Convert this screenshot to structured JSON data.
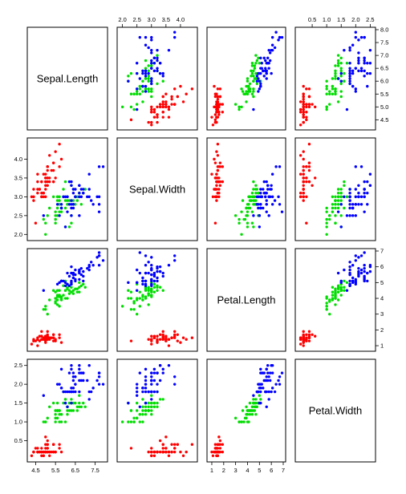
{
  "chart_data": {
    "type": "scatter",
    "variables": [
      {
        "name": "Sepal.Length",
        "range": [
          4.2,
          8.0
        ],
        "ticks": [
          "4.5",
          "5.5",
          "6.5",
          "7.5"
        ],
        "tick_values": [
          4.5,
          5.5,
          6.5,
          7.5
        ],
        "right_ticks": [
          "4.5",
          "5.0",
          "5.5",
          "6.0",
          "6.5",
          "7.0",
          "7.5",
          "8.0"
        ],
        "right_tick_values": [
          4.5,
          5.0,
          5.5,
          6.0,
          6.5,
          7.0,
          7.5,
          8.0
        ]
      },
      {
        "name": "Sepal.Width",
        "range": [
          1.9,
          4.5
        ],
        "ticks": [
          "2.0",
          "2.5",
          "3.0",
          "3.5",
          "4.0"
        ],
        "tick_values": [
          2.0,
          2.5,
          3.0,
          3.5,
          4.0
        ]
      },
      {
        "name": "Petal.Length",
        "range": [
          0.8,
          7.0
        ],
        "ticks": [
          "1",
          "2",
          "3",
          "4",
          "5",
          "6",
          "7"
        ],
        "tick_values": [
          1,
          2,
          3,
          4,
          5,
          6,
          7
        ]
      },
      {
        "name": "Petal.Width",
        "range": [
          0.0,
          2.6
        ],
        "ticks": [
          "0.5",
          "1.0",
          "1.5",
          "2.0",
          "2.5"
        ],
        "tick_values": [
          0.5,
          1.0,
          1.5,
          2.0,
          2.5
        ]
      }
    ],
    "group_colors": [
      "#ff0000",
      "#00dd00",
      "#0000ff"
    ],
    "groups": [
      {
        "color": "#ff0000",
        "points": [
          [
            5.1,
            3.5,
            1.4,
            0.2
          ],
          [
            4.9,
            3.0,
            1.4,
            0.2
          ],
          [
            4.7,
            3.2,
            1.3,
            0.2
          ],
          [
            4.6,
            3.1,
            1.5,
            0.2
          ],
          [
            5.0,
            3.6,
            1.4,
            0.2
          ],
          [
            5.4,
            3.9,
            1.7,
            0.4
          ],
          [
            4.6,
            3.4,
            1.4,
            0.3
          ],
          [
            5.0,
            3.4,
            1.5,
            0.2
          ],
          [
            4.4,
            2.9,
            1.4,
            0.2
          ],
          [
            4.9,
            3.1,
            1.5,
            0.1
          ],
          [
            5.4,
            3.7,
            1.5,
            0.2
          ],
          [
            4.8,
            3.4,
            1.6,
            0.2
          ],
          [
            4.8,
            3.0,
            1.4,
            0.1
          ],
          [
            4.3,
            3.0,
            1.1,
            0.1
          ],
          [
            5.8,
            4.0,
            1.2,
            0.2
          ],
          [
            5.7,
            4.4,
            1.5,
            0.4
          ],
          [
            5.4,
            3.9,
            1.3,
            0.4
          ],
          [
            5.1,
            3.5,
            1.4,
            0.3
          ],
          [
            5.7,
            3.8,
            1.7,
            0.3
          ],
          [
            5.1,
            3.8,
            1.5,
            0.3
          ],
          [
            5.4,
            3.4,
            1.7,
            0.2
          ],
          [
            5.1,
            3.7,
            1.5,
            0.4
          ],
          [
            4.6,
            3.6,
            1.0,
            0.2
          ],
          [
            5.1,
            3.3,
            1.7,
            0.5
          ],
          [
            4.8,
            3.4,
            1.9,
            0.2
          ],
          [
            5.0,
            3.0,
            1.6,
            0.2
          ],
          [
            5.0,
            3.4,
            1.6,
            0.4
          ],
          [
            5.2,
            3.5,
            1.5,
            0.2
          ],
          [
            5.2,
            3.4,
            1.4,
            0.2
          ],
          [
            4.7,
            3.2,
            1.6,
            0.2
          ],
          [
            4.8,
            3.1,
            1.6,
            0.2
          ],
          [
            5.4,
            3.4,
            1.5,
            0.4
          ],
          [
            5.2,
            4.1,
            1.5,
            0.1
          ],
          [
            5.5,
            4.2,
            1.4,
            0.2
          ],
          [
            4.9,
            3.1,
            1.5,
            0.2
          ],
          [
            5.0,
            3.2,
            1.2,
            0.2
          ],
          [
            5.5,
            3.5,
            1.3,
            0.2
          ],
          [
            4.9,
            3.6,
            1.4,
            0.1
          ],
          [
            4.4,
            3.0,
            1.3,
            0.2
          ],
          [
            5.1,
            3.4,
            1.5,
            0.2
          ],
          [
            5.0,
            3.5,
            1.3,
            0.3
          ],
          [
            4.5,
            2.3,
            1.3,
            0.3
          ],
          [
            4.4,
            3.2,
            1.3,
            0.2
          ],
          [
            5.0,
            3.5,
            1.6,
            0.6
          ],
          [
            5.1,
            3.8,
            1.9,
            0.4
          ],
          [
            4.8,
            3.0,
            1.4,
            0.3
          ],
          [
            5.1,
            3.8,
            1.6,
            0.2
          ],
          [
            4.6,
            3.2,
            1.4,
            0.2
          ],
          [
            5.3,
            3.7,
            1.5,
            0.2
          ],
          [
            5.0,
            3.3,
            1.4,
            0.2
          ]
        ]
      },
      {
        "color": "#00dd00",
        "points": [
          [
            7.0,
            3.2,
            4.7,
            1.4
          ],
          [
            6.4,
            3.2,
            4.5,
            1.5
          ],
          [
            6.9,
            3.1,
            4.9,
            1.5
          ],
          [
            5.5,
            2.3,
            4.0,
            1.3
          ],
          [
            6.5,
            2.8,
            4.6,
            1.5
          ],
          [
            5.7,
            2.8,
            4.5,
            1.3
          ],
          [
            6.3,
            3.3,
            4.7,
            1.6
          ],
          [
            4.9,
            2.4,
            3.3,
            1.0
          ],
          [
            6.6,
            2.9,
            4.6,
            1.3
          ],
          [
            5.2,
            2.7,
            3.9,
            1.4
          ],
          [
            5.0,
            2.0,
            3.5,
            1.0
          ],
          [
            5.9,
            3.0,
            4.2,
            1.5
          ],
          [
            6.0,
            2.2,
            4.0,
            1.0
          ],
          [
            6.1,
            2.9,
            4.7,
            1.4
          ],
          [
            5.6,
            2.9,
            3.6,
            1.3
          ],
          [
            6.7,
            3.1,
            4.4,
            1.4
          ],
          [
            5.6,
            3.0,
            4.5,
            1.5
          ],
          [
            5.8,
            2.7,
            4.1,
            1.0
          ],
          [
            6.2,
            2.2,
            4.5,
            1.5
          ],
          [
            5.6,
            2.5,
            3.9,
            1.1
          ],
          [
            5.9,
            3.2,
            4.8,
            1.8
          ],
          [
            6.1,
            2.8,
            4.0,
            1.3
          ],
          [
            6.3,
            2.5,
            4.9,
            1.5
          ],
          [
            6.1,
            2.8,
            4.7,
            1.2
          ],
          [
            6.4,
            2.9,
            4.3,
            1.3
          ],
          [
            6.6,
            3.0,
            4.4,
            1.4
          ],
          [
            6.8,
            2.8,
            4.8,
            1.4
          ],
          [
            6.7,
            3.0,
            5.0,
            1.7
          ],
          [
            6.0,
            2.9,
            4.5,
            1.5
          ],
          [
            5.7,
            2.6,
            3.5,
            1.0
          ],
          [
            5.5,
            2.4,
            3.8,
            1.1
          ],
          [
            5.5,
            2.4,
            3.7,
            1.0
          ],
          [
            5.8,
            2.7,
            3.9,
            1.2
          ],
          [
            6.0,
            2.7,
            5.1,
            1.6
          ],
          [
            5.4,
            3.0,
            4.5,
            1.5
          ],
          [
            6.0,
            3.4,
            4.5,
            1.6
          ],
          [
            6.7,
            3.1,
            4.7,
            1.5
          ],
          [
            6.3,
            2.3,
            4.4,
            1.3
          ],
          [
            5.6,
            3.0,
            4.1,
            1.3
          ],
          [
            5.5,
            2.5,
            4.0,
            1.3
          ],
          [
            5.5,
            2.6,
            4.4,
            1.2
          ],
          [
            6.1,
            3.0,
            4.6,
            1.4
          ],
          [
            5.8,
            2.6,
            4.0,
            1.2
          ],
          [
            5.0,
            2.3,
            3.3,
            1.0
          ],
          [
            5.6,
            2.7,
            4.2,
            1.3
          ],
          [
            5.7,
            3.0,
            4.2,
            1.2
          ],
          [
            5.7,
            2.9,
            4.2,
            1.3
          ],
          [
            6.2,
            2.9,
            4.3,
            1.3
          ],
          [
            5.1,
            2.5,
            3.0,
            1.1
          ],
          [
            5.7,
            2.8,
            4.1,
            1.3
          ]
        ]
      },
      {
        "color": "#0000ff",
        "points": [
          [
            6.3,
            3.3,
            6.0,
            2.5
          ],
          [
            5.8,
            2.7,
            5.1,
            1.9
          ],
          [
            7.1,
            3.0,
            5.9,
            2.1
          ],
          [
            6.3,
            2.9,
            5.6,
            1.8
          ],
          [
            6.5,
            3.0,
            5.8,
            2.2
          ],
          [
            7.6,
            3.0,
            6.6,
            2.1
          ],
          [
            4.9,
            2.5,
            4.5,
            1.7
          ],
          [
            7.3,
            2.9,
            6.3,
            1.8
          ],
          [
            6.7,
            2.5,
            5.8,
            1.8
          ],
          [
            7.2,
            3.6,
            6.1,
            2.5
          ],
          [
            6.5,
            3.2,
            5.1,
            2.0
          ],
          [
            6.4,
            2.7,
            5.3,
            1.9
          ],
          [
            6.8,
            3.0,
            5.5,
            2.1
          ],
          [
            5.7,
            2.5,
            5.0,
            2.0
          ],
          [
            5.8,
            2.8,
            5.1,
            2.4
          ],
          [
            6.4,
            3.2,
            5.3,
            2.3
          ],
          [
            6.5,
            3.0,
            5.5,
            1.8
          ],
          [
            7.7,
            3.8,
            6.7,
            2.2
          ],
          [
            7.7,
            2.6,
            6.9,
            2.3
          ],
          [
            6.0,
            2.2,
            5.0,
            1.5
          ],
          [
            6.9,
            3.2,
            5.7,
            2.3
          ],
          [
            5.6,
            2.8,
            4.9,
            2.0
          ],
          [
            7.7,
            2.8,
            6.7,
            2.0
          ],
          [
            6.3,
            2.7,
            4.9,
            1.8
          ],
          [
            6.7,
            3.3,
            5.7,
            2.1
          ],
          [
            7.2,
            3.2,
            6.0,
            1.8
          ],
          [
            6.2,
            2.8,
            4.8,
            1.8
          ],
          [
            6.1,
            3.0,
            4.9,
            1.8
          ],
          [
            6.4,
            2.8,
            5.6,
            2.1
          ],
          [
            7.2,
            3.0,
            5.8,
            1.6
          ],
          [
            7.4,
            2.8,
            6.1,
            1.9
          ],
          [
            7.9,
            3.8,
            6.4,
            2.0
          ],
          [
            6.4,
            2.8,
            5.6,
            2.2
          ],
          [
            6.3,
            2.8,
            5.1,
            1.5
          ],
          [
            6.1,
            2.6,
            5.6,
            1.4
          ],
          [
            7.7,
            3.0,
            6.1,
            2.3
          ],
          [
            6.3,
            3.4,
            5.6,
            2.4
          ],
          [
            6.4,
            3.1,
            5.5,
            1.8
          ],
          [
            6.0,
            3.0,
            4.8,
            1.8
          ],
          [
            6.9,
            3.1,
            5.4,
            2.1
          ],
          [
            6.7,
            3.1,
            5.6,
            2.4
          ],
          [
            6.9,
            3.1,
            5.1,
            2.3
          ],
          [
            5.8,
            2.7,
            5.1,
            1.9
          ],
          [
            6.8,
            3.2,
            5.9,
            2.3
          ],
          [
            6.7,
            3.3,
            5.7,
            2.5
          ],
          [
            6.7,
            3.0,
            5.2,
            2.3
          ],
          [
            6.3,
            2.5,
            5.0,
            1.9
          ],
          [
            6.5,
            3.0,
            5.2,
            2.0
          ],
          [
            6.2,
            3.4,
            5.4,
            2.3
          ],
          [
            5.9,
            3.0,
            5.1,
            1.8
          ]
        ]
      }
    ],
    "title": "",
    "grid": false
  }
}
